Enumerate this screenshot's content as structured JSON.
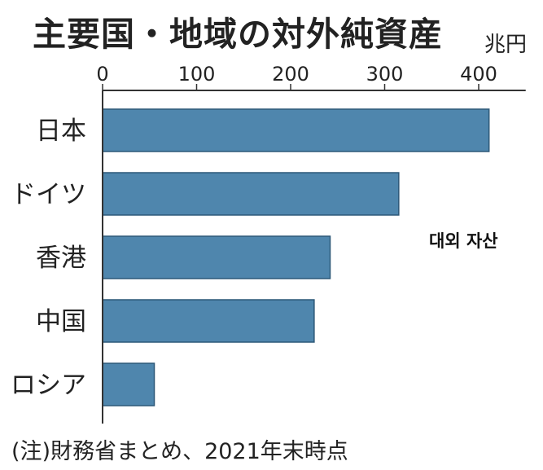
{
  "title": "主要国・地域の対外純資産",
  "unit": "兆円",
  "overlay_text": "대외 자산",
  "note": "(注)財務省まとめ、2021年末時点",
  "chart_data": {
    "type": "bar",
    "orientation": "horizontal",
    "title": "主要国・地域の対外純資産",
    "xlabel": "兆円",
    "categories": [
      "日本",
      "ドイツ",
      "香港",
      "中国",
      "ロシア"
    ],
    "values": [
      411,
      315,
      242,
      225,
      55
    ],
    "xlim": [
      0,
      450
    ],
    "xticks": [
      0,
      100,
      200,
      300,
      400
    ],
    "bar_color": "#4f86ad",
    "grid": false,
    "legend": "none"
  }
}
